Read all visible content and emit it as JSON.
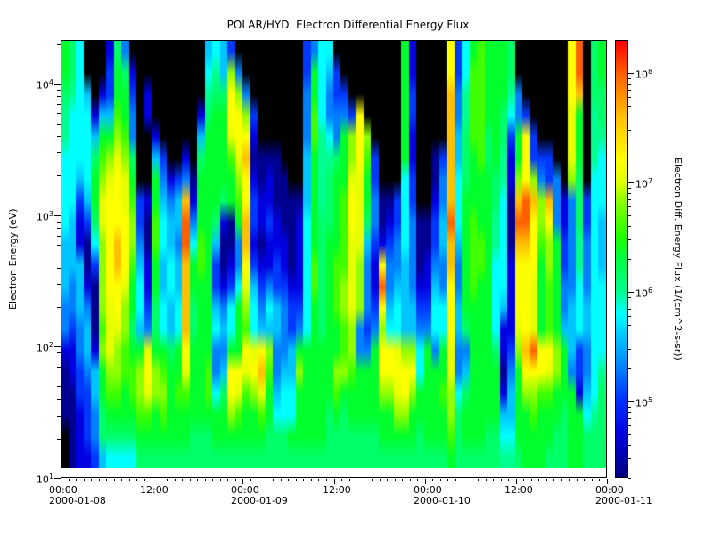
{
  "title": "POLAR/HYD  Electron Differential Energy Flux",
  "chart_data": {
    "type": "heatmap",
    "title": "POLAR/HYD  Electron Differential Energy Flux",
    "x_axis": {
      "start": "2000-01-08 00:00",
      "end": "2000-01-11 00:00",
      "total_hours": 72,
      "minor_tick_interval_hours": 1,
      "major_ticks": [
        {
          "hour": 0,
          "label": "00:00",
          "date": "2000-01-08"
        },
        {
          "hour": 12,
          "label": "12:00",
          "date": ""
        },
        {
          "hour": 24,
          "label": "00:00",
          "date": "2000-01-09"
        },
        {
          "hour": 36,
          "label": "12:00",
          "date": ""
        },
        {
          "hour": 48,
          "label": "00:00",
          "date": "2000-01-10"
        },
        {
          "hour": 60,
          "label": "12:00",
          "date": ""
        },
        {
          "hour": 72,
          "label": "00:00",
          "date": "2000-01-11"
        }
      ]
    },
    "y_axis": {
      "label": "Electron Energy (eV)",
      "scale": "log10",
      "tick_base": "10",
      "tick_exponents": [
        1,
        2,
        3,
        4
      ],
      "log10_min": 1.0,
      "log10_max": 4.333
    },
    "colorbar": {
      "label": "Electron Diff. Energy Flux (1/(cm^2-s-sr))",
      "scale": "log10",
      "tick_base": "10",
      "tick_exponents": [
        5,
        6,
        7,
        8
      ],
      "log10_min": 4.3,
      "log10_max": 8.3,
      "colormap": [
        {
          "v": 4.3,
          "color": "#000080"
        },
        {
          "v": 4.7,
          "color": "#0000e0"
        },
        {
          "v": 5.0,
          "color": "#0030ff"
        },
        {
          "v": 5.3,
          "color": "#0080ff"
        },
        {
          "v": 5.6,
          "color": "#00c8ff"
        },
        {
          "v": 5.8,
          "color": "#00ffff"
        },
        {
          "v": 6.0,
          "color": "#00ff90"
        },
        {
          "v": 6.3,
          "color": "#00ff40"
        },
        {
          "v": 6.5,
          "color": "#20ff00"
        },
        {
          "v": 6.8,
          "color": "#80ff00"
        },
        {
          "v": 7.0,
          "color": "#e0ff00"
        },
        {
          "v": 7.2,
          "color": "#ffff00"
        },
        {
          "v": 7.6,
          "color": "#ffc000"
        },
        {
          "v": 8.0,
          "color": "#ff6000"
        },
        {
          "v": 8.3,
          "color": "#ff0000"
        }
      ]
    },
    "grid": {
      "description": "Spectrogram flux levels, one hex digit per cell. 72 hourly columns from 2000-01-08 00:00 to 2000-01-11 00:00; each column has 20 energy rows ordered top (~20 keV) to bottom (~12 eV). 0 = no data / below threshold (black); 1-15 = increasing log10 flux (~10^4.5 to ~10^8).",
      "level_colors": [
        "#000000",
        "#000090",
        "#0000e0",
        "#0038ff",
        "#0080ff",
        "#00c4ff",
        "#00ffff",
        "#00ff90",
        "#00ff68",
        "#00ff2c",
        "#40ff00",
        "#90ff00",
        "#e8ff00",
        "#ffff00",
        "#ffc000",
        "#ff6000"
      ],
      "columns": [
        "99877666655544211100",
        "88766666555443221111",
        "66666653225554433222",
        "00566665311245543332",
        "00025899863111255443",
        "00259abccbbbbab99885",
        "23359bcdddddcccba986",
        "899abcdddeeddcbba986",
        "4899abccdddcbbaa9986",
        "0234489abba9989aa986",
        "000000033456659bba98",
        "00220002112234cdca98",
        "00002599aa99889bb998",
        "000003456655669aba98",
        "00000024556655899998",
        "0000003554556699a998",
        "0000024effeeeedca998",
        "00000012469988999988",
        "000258999aa999999988",
        "567899999999999aa988",
        "67899999853356446998",
        "55899998211245458998",
        "3bddca991123669ddb98",
        "04bddcba9446999dca98",
        "004bdeddeedcbadca998",
        "00032123323566cdb998",
        "00000112212345deca98",
        "00000122322465ba9988",
        "00000111223355445688",
        "00000011122344456688",
        "00000001111233556698",
        "000000012222349b9998",
        "33444555666666999998",
        "499aa99999aa99999998",
        "66667777888888999998",
        "65446788899999999888",
        "0334489999aaa99ba988",
        "0034999aaaabbaab9888",
        "0003bbcddccccbba9988",
        "000dddccccbbb4499988",
        "0000ba99854443499988",
        "00000334432234999988",
        "0000000112dfdbddb998",
        "00000001234456ddb998",
        "00000003344566cdcb98",
        "99999966665555bddb98",
        "22332233444455bdb998",
        "00000000111234669988",
        "00000000112234999998",
        "00000112334566499998",
        "0000034455446699a998",
        "ddeeeeeefeedddccbba9",
        "33445566654455446888",
        "66778889999998458998",
        "9aaaa999aaaa99999998",
        "aaaaaa999aa999999998",
        "99998899999999999988",
        "99999988776666899988",
        "99988776666652212567",
        "88763221112222345567",
        "004499befedddcb99998",
        "0003dddffeddddedb999",
        "000033bedddcccfdba99",
        "0000034bba9999dda999",
        "0000033edbbaaadca998",
        "00000044499999bb9988",
        "00000002233445999888",
        "dddcccb4444455549999",
        "ffe99988877666332999",
        "00000003344455445688",
        "88877766666666666788",
        "99887666555666678888"
      ]
    }
  }
}
